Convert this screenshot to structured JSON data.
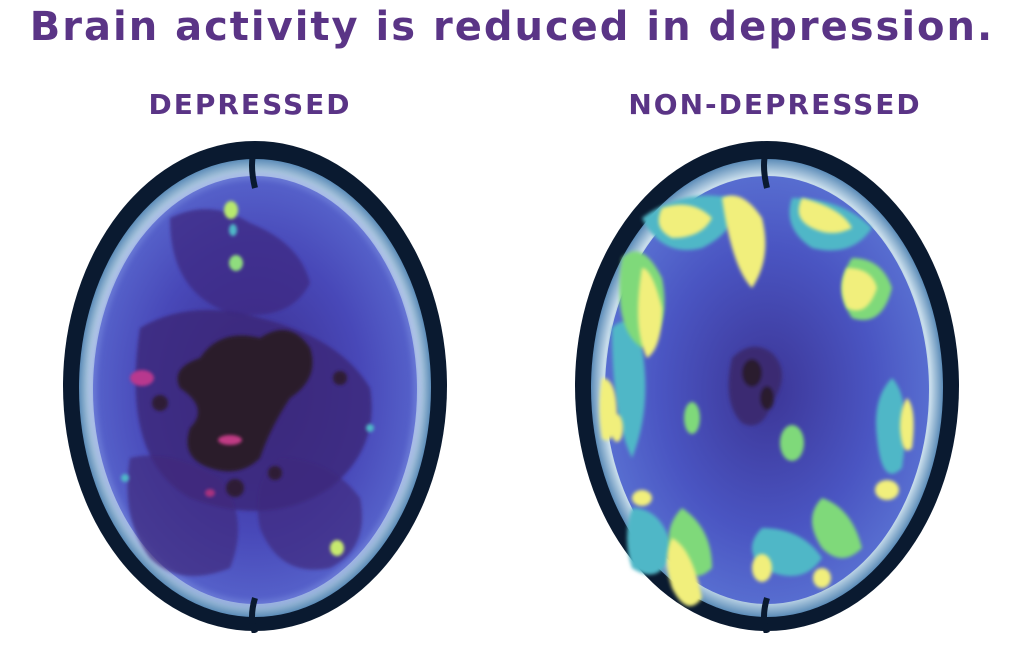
{
  "title": "Brain activity is reduced in depression.",
  "panels": [
    {
      "label": "DEPRESSED",
      "activity_level": "low"
    },
    {
      "label": "NON-DEPRESSED",
      "activity_level": "high"
    }
  ],
  "colors": {
    "title": "#5a3486",
    "skull_dark": "#0c1a30",
    "skull_bone": "#5c8cb8",
    "cortex_base": "#4b52c0",
    "low_activity": "#40267a",
    "very_low_activity": "#2a1a2e",
    "high_activity_yellow": "#f1f07a",
    "high_activity_green": "#72d67e",
    "high_activity_cyan": "#4fb7c7"
  }
}
